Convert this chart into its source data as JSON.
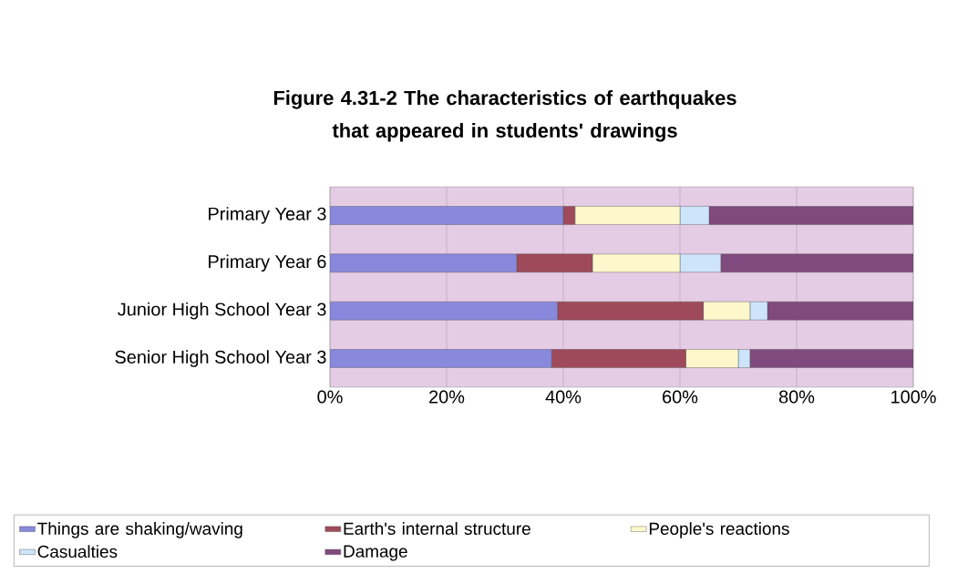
{
  "chart_data": {
    "type": "bar",
    "orientation": "horizontal",
    "stacked": true,
    "title": "Figure 4.31-2 The characteristics of earthquakes that appeared in students' drawings",
    "categories": [
      "Primary Year 3",
      "Primary Year 6",
      "Junior High School Year 3",
      "Senior High School Year 3"
    ],
    "series": [
      {
        "name": "Things are shaking/waving",
        "color": "#8888dd",
        "values": [
          40,
          32,
          39,
          38
        ]
      },
      {
        "name": "Earth's internal structure",
        "color": "#9e4a5a",
        "values": [
          2,
          13,
          25,
          23
        ]
      },
      {
        "name": "People's reactions",
        "color": "#fdf8cc",
        "values": [
          18,
          15,
          8,
          9
        ]
      },
      {
        "name": "Casualties",
        "color": "#cde4fa",
        "values": [
          5,
          7,
          3,
          2
        ]
      },
      {
        "name": "Damage",
        "color": "#804a7e",
        "values": [
          35,
          33,
          25,
          28
        ]
      }
    ],
    "xlim": [
      0,
      100
    ],
    "xticks": [
      {
        "value": 0,
        "label": "0%"
      },
      {
        "value": 20,
        "label": "20%"
      },
      {
        "value": 40,
        "label": "40%"
      },
      {
        "value": 60,
        "label": "60%"
      },
      {
        "value": 80,
        "label": "80%"
      },
      {
        "value": 100,
        "label": "100%"
      }
    ],
    "grid": "x",
    "legend": "bottom"
  }
}
